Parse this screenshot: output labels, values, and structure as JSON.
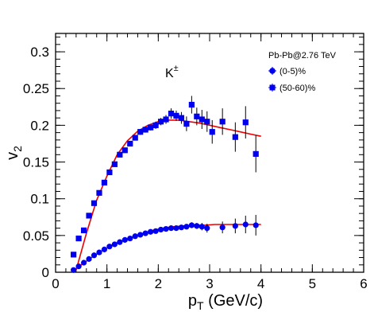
{
  "chart_data": {
    "type": "scatter",
    "xlabel": "p",
    "xlabel_sub": "T",
    "xlabel_unit": " (GeV/c)",
    "ylabel": "v",
    "ylabel_sub": "2",
    "xlim": [
      0,
      6
    ],
    "ylim": [
      0,
      0.325
    ],
    "x_ticks": [
      0,
      1,
      2,
      3,
      4,
      5,
      6
    ],
    "x_tick_labels": [
      "0",
      "1",
      "2",
      "3",
      "4",
      "5",
      "6"
    ],
    "y_ticks": [
      0,
      0.05,
      0.1,
      0.15,
      0.2,
      0.25,
      0.3
    ],
    "y_tick_labels": [
      "0",
      "0.05",
      "0.1",
      "0.15",
      "0.2",
      "0.25",
      "0.3"
    ],
    "grid": false,
    "legend_position": "top-right",
    "legend_title": "Pb-Pb@2.76 TeV",
    "annotation": {
      "text": "K",
      "sup": "±"
    },
    "colors": {
      "markers": "#0000ee",
      "fit": "#ee0000",
      "axes": "#000000"
    },
    "series": [
      {
        "name": "(0-5)%",
        "marker": "circle",
        "x": [
          0.35,
          0.45,
          0.55,
          0.65,
          0.75,
          0.85,
          0.95,
          1.05,
          1.15,
          1.25,
          1.35,
          1.45,
          1.55,
          1.65,
          1.75,
          1.85,
          1.95,
          2.05,
          2.15,
          2.25,
          2.35,
          2.45,
          2.55,
          2.65,
          2.75,
          2.85,
          2.95,
          3.25,
          3.5,
          3.7,
          3.9
        ],
        "y": [
          0.003,
          0.008,
          0.013,
          0.018,
          0.023,
          0.027,
          0.031,
          0.035,
          0.038,
          0.041,
          0.044,
          0.046,
          0.049,
          0.051,
          0.053,
          0.055,
          0.056,
          0.058,
          0.059,
          0.06,
          0.06,
          0.061,
          0.062,
          0.064,
          0.063,
          0.062,
          0.06,
          0.061,
          0.063,
          0.065,
          0.064
        ],
        "err": [
          0.001,
          0.001,
          0.001,
          0.001,
          0.001,
          0.001,
          0.001,
          0.001,
          0.001,
          0.001,
          0.001,
          0.001,
          0.001,
          0.001,
          0.002,
          0.002,
          0.002,
          0.002,
          0.002,
          0.002,
          0.002,
          0.003,
          0.003,
          0.004,
          0.004,
          0.005,
          0.006,
          0.008,
          0.01,
          0.012,
          0.014
        ]
      },
      {
        "name": "(50-60)%",
        "marker": "square",
        "x": [
          0.35,
          0.45,
          0.55,
          0.65,
          0.75,
          0.85,
          0.95,
          1.05,
          1.15,
          1.25,
          1.35,
          1.45,
          1.55,
          1.65,
          1.75,
          1.85,
          1.95,
          2.05,
          2.15,
          2.25,
          2.35,
          2.45,
          2.55,
          2.65,
          2.75,
          2.85,
          2.95,
          3.05,
          3.25,
          3.5,
          3.7,
          3.9
        ],
        "y": [
          0.024,
          0.046,
          0.057,
          0.077,
          0.094,
          0.108,
          0.122,
          0.136,
          0.147,
          0.16,
          0.166,
          0.175,
          0.183,
          0.191,
          0.194,
          0.197,
          0.2,
          0.205,
          0.208,
          0.216,
          0.213,
          0.21,
          0.202,
          0.228,
          0.212,
          0.208,
          0.205,
          0.191,
          0.205,
          0.184,
          0.204,
          0.161
        ],
        "err": [
          0.002,
          0.002,
          0.002,
          0.002,
          0.002,
          0.002,
          0.002,
          0.002,
          0.002,
          0.003,
          0.003,
          0.003,
          0.003,
          0.004,
          0.004,
          0.004,
          0.005,
          0.005,
          0.006,
          0.007,
          0.007,
          0.008,
          0.01,
          0.012,
          0.012,
          0.013,
          0.014,
          0.016,
          0.018,
          0.02,
          0.022,
          0.025
        ]
      }
    ],
    "fits": [
      {
        "x": [
          0.35,
          0.5,
          0.7,
          0.9,
          1.1,
          1.3,
          1.5,
          1.7,
          1.9,
          2.1,
          2.3,
          2.5,
          2.7,
          2.9,
          3.1,
          3.3,
          3.5,
          3.7,
          3.9,
          4.0
        ],
        "y": [
          0.002,
          0.01,
          0.02,
          0.029,
          0.037,
          0.043,
          0.048,
          0.053,
          0.057,
          0.06,
          0.062,
          0.063,
          0.064,
          0.064,
          0.065,
          0.065,
          0.065,
          0.065,
          0.065,
          0.065
        ]
      },
      {
        "x": [
          0.4,
          0.6,
          0.8,
          1.0,
          1.2,
          1.4,
          1.6,
          1.8,
          2.0,
          2.2,
          2.4,
          2.6,
          2.8,
          3.0,
          3.2,
          3.4,
          3.6,
          3.8,
          4.0
        ],
        "y": [
          0.003,
          0.053,
          0.098,
          0.131,
          0.16,
          0.179,
          0.192,
          0.2,
          0.205,
          0.207,
          0.207,
          0.205,
          0.203,
          0.2,
          0.197,
          0.194,
          0.191,
          0.188,
          0.185
        ]
      }
    ]
  }
}
